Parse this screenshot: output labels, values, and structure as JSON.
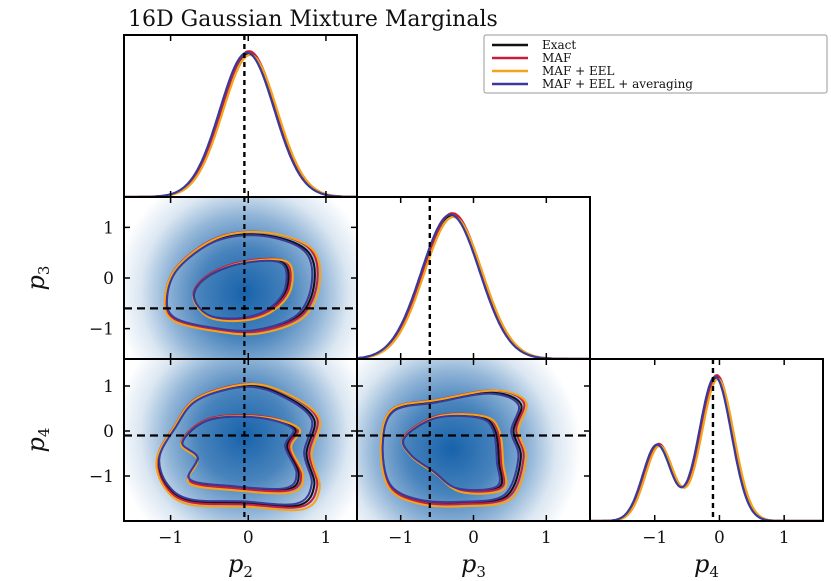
{
  "title": "16D Gaussian Mixture Marginals",
  "chart_data": {
    "type": "corner",
    "parameters": [
      "p2",
      "p3",
      "p4"
    ],
    "parameter_labels": {
      "p2": {
        "base": "p",
        "sub": "2"
      },
      "p3": {
        "base": "p",
        "sub": "3"
      },
      "p4": {
        "base": "p",
        "sub": "4"
      }
    },
    "truth": {
      "p2": -0.05,
      "p3": -0.6,
      "p4": -0.1
    },
    "ranges": {
      "p2": [
        -1.6,
        1.4
      ],
      "p3": [
        -1.6,
        1.6
      ],
      "p4": [
        -2.0,
        1.6
      ]
    },
    "ticks": {
      "x": [
        {
          "v": -1,
          "label": "−1"
        },
        {
          "v": 0,
          "label": "0"
        },
        {
          "v": 1,
          "label": "1"
        }
      ],
      "y": [
        {
          "v": 1,
          "label": "1"
        },
        {
          "v": 0,
          "label": "0"
        },
        {
          "v": -1,
          "label": "−1"
        }
      ]
    },
    "legend": {
      "placement": "top-right",
      "entries": [
        {
          "label": "Exact",
          "color": "#111111"
        },
        {
          "label": "MAF",
          "color": "#c81e3c"
        },
        {
          "label": "MAF + EEL",
          "color": "#f5a31a"
        },
        {
          "label": "MAF + EEL + averaging",
          "color": "#3a3a9a"
        }
      ]
    },
    "fill_color": "#0b5aa6",
    "diagonal": {
      "p2": {
        "components": [
          {
            "mu": 0.0,
            "sigma": 0.35,
            "w": 1.0
          }
        ]
      },
      "p3": {
        "components": [
          {
            "mu": -0.3,
            "sigma": 0.4,
            "w": 1.0
          }
        ]
      },
      "p4": {
        "components": [
          {
            "mu": -0.95,
            "sigma": 0.22,
            "w": 0.38
          },
          {
            "mu": -0.05,
            "sigma": 0.25,
            "w": 0.72
          }
        ]
      }
    },
    "joint": [
      {
        "x": "p2",
        "y": "p3",
        "center": [
          -0.05,
          -0.3
        ],
        "outer": [
          [
            -1.05,
            -0.4
          ],
          [
            -0.9,
            0.2
          ],
          [
            -0.4,
            0.75
          ],
          [
            0.2,
            0.85
          ],
          [
            0.75,
            0.55
          ],
          [
            0.85,
            -0.1
          ],
          [
            0.65,
            -0.75
          ],
          [
            0.1,
            -1.05
          ],
          [
            -0.45,
            -1.0
          ],
          [
            -0.95,
            -0.8
          ]
        ],
        "inner": [
          [
            -0.7,
            -0.35
          ],
          [
            -0.5,
            0.05
          ],
          [
            -0.05,
            0.3
          ],
          [
            0.45,
            0.3
          ],
          [
            0.5,
            -0.2
          ],
          [
            0.3,
            -0.6
          ],
          [
            -0.05,
            -0.8
          ],
          [
            -0.5,
            -0.75
          ]
        ]
      },
      {
        "x": "p2",
        "y": "p4",
        "center": [
          -0.05,
          -0.1
        ],
        "outer": [
          [
            -1.15,
            -0.6
          ],
          [
            -0.95,
            0.05
          ],
          [
            -0.65,
            0.7
          ],
          [
            0.0,
            1.0
          ],
          [
            0.5,
            0.75
          ],
          [
            0.85,
            0.25
          ],
          [
            0.75,
            -0.5
          ],
          [
            0.85,
            -1.2
          ],
          [
            0.65,
            -1.65
          ],
          [
            -0.05,
            -1.6
          ],
          [
            -0.75,
            -1.55
          ],
          [
            -1.05,
            -1.2
          ]
        ],
        "inner": [
          [
            -0.85,
            -0.25
          ],
          [
            -0.5,
            0.25
          ],
          [
            0.15,
            0.3
          ],
          [
            0.6,
            0.05
          ],
          [
            0.5,
            -0.35
          ],
          [
            0.65,
            -0.95
          ],
          [
            0.5,
            -1.3
          ],
          [
            -0.2,
            -1.25
          ],
          [
            -0.75,
            -1.1
          ],
          [
            -0.65,
            -0.6
          ]
        ]
      },
      {
        "x": "p3",
        "y": "p4",
        "center": [
          -0.3,
          -0.4
        ],
        "outer": [
          [
            -1.25,
            -0.3
          ],
          [
            -1.1,
            0.45
          ],
          [
            -0.5,
            0.65
          ],
          [
            0.25,
            0.85
          ],
          [
            0.65,
            0.6
          ],
          [
            0.55,
            0.0
          ],
          [
            0.65,
            -0.6
          ],
          [
            0.45,
            -1.45
          ],
          [
            -0.15,
            -1.6
          ],
          [
            -0.75,
            -1.55
          ],
          [
            -1.15,
            -1.2
          ]
        ],
        "inner": [
          [
            -0.95,
            -0.15
          ],
          [
            -0.5,
            0.3
          ],
          [
            0.1,
            0.3
          ],
          [
            0.3,
            0.0
          ],
          [
            0.35,
            -0.7
          ],
          [
            0.35,
            -1.25
          ],
          [
            -0.2,
            -1.3
          ],
          [
            -0.55,
            -0.9
          ],
          [
            -0.85,
            -0.55
          ]
        ]
      }
    ]
  }
}
